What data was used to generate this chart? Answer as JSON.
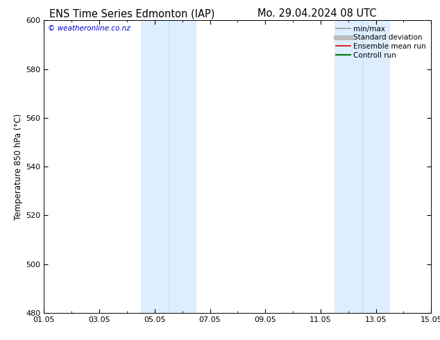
{
  "title_left": "ENS Time Series Edmonton (IAP)",
  "title_right": "Mo. 29.04.2024 08 UTC",
  "ylabel": "Temperature 850 hPa (°C)",
  "ylim": [
    480,
    600
  ],
  "yticks": [
    480,
    500,
    520,
    540,
    560,
    580,
    600
  ],
  "xtick_labels": [
    "01.05",
    "03.05",
    "05.05",
    "07.05",
    "09.05",
    "11.05",
    "13.05",
    "15.05"
  ],
  "xtick_positions": [
    0,
    2,
    4,
    6,
    8,
    10,
    12,
    14
  ],
  "shaded_bands": [
    {
      "start": 3.5,
      "end": 4.5
    },
    {
      "start": 4.5,
      "end": 5.5
    },
    {
      "start": 10.5,
      "end": 11.5
    },
    {
      "start": 11.5,
      "end": 12.5
    }
  ],
  "shade_color": "#ddeeff",
  "shade_border_color": "#b8d4ee",
  "watermark_text": "© weatheronline.co.nz",
  "watermark_color": "#0000cc",
  "legend_items": [
    {
      "label": "min/max",
      "color": "#999999",
      "lw": 1.2
    },
    {
      "label": "Standard deviation",
      "color": "#bbbbbb",
      "lw": 5
    },
    {
      "label": "Ensemble mean run",
      "color": "#dd0000",
      "lw": 1.2
    },
    {
      "label": "Controll run",
      "color": "#007700",
      "lw": 1.5
    }
  ],
  "bg_color": "#ffffff",
  "plot_bg_color": "#ffffff",
  "title_fontsize": 10.5,
  "axis_label_fontsize": 8.5,
  "tick_fontsize": 8,
  "legend_fontsize": 7.5
}
